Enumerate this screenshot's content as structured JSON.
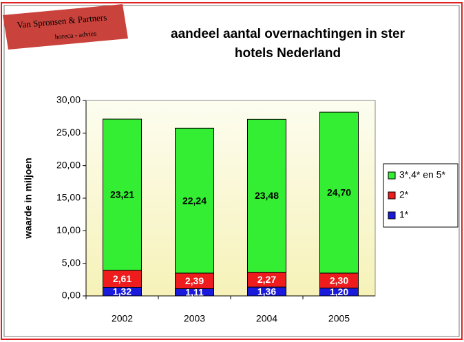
{
  "logo": {
    "name": "Van Spronsen & Partners",
    "tagline": "horeca - advies"
  },
  "chart_data": {
    "type": "stacked_bar",
    "title": "aandeel aantal overnachtingen in ster hotels Nederland",
    "y_label": "waarde in miljoen",
    "categories": [
      "2002",
      "2003",
      "2004",
      "2005"
    ],
    "series": [
      {
        "name": "1*",
        "color": "#1a1adc",
        "values": [
          1.32,
          1.11,
          1.36,
          1.2
        ],
        "value_labels": [
          "1,32",
          "1,11",
          "1,36",
          "1,20"
        ]
      },
      {
        "name": "2*",
        "color": "#ee1c1c",
        "values": [
          2.61,
          2.39,
          2.27,
          2.3
        ],
        "value_labels": [
          "2,61",
          "2,39",
          "2,27",
          "2,30"
        ]
      },
      {
        "name": "3*,4* en 5*",
        "color": "#33ee33",
        "values": [
          23.21,
          22.24,
          23.48,
          24.7
        ],
        "value_labels": [
          "23,21",
          "22,24",
          "23,48",
          "24,70"
        ]
      }
    ],
    "ylim": [
      0,
      30
    ],
    "yticks": [
      {
        "value": 0,
        "label": "0,00"
      },
      {
        "value": 5,
        "label": "5,00"
      },
      {
        "value": 10,
        "label": "10,00"
      },
      {
        "value": 15,
        "label": "15,00"
      },
      {
        "value": 20,
        "label": "20,00"
      },
      {
        "value": 25,
        "label": "25,00"
      },
      {
        "value": 30,
        "label": "30,00"
      }
    ],
    "legend": "right"
  }
}
